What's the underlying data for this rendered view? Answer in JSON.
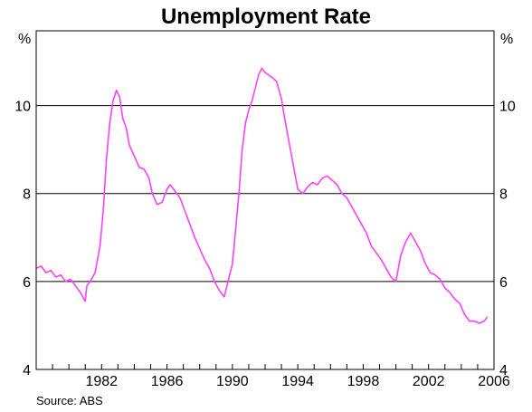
{
  "chart_data": {
    "type": "line",
    "title": "Unemployment Rate",
    "ylabel_left": "%",
    "ylabel_right": "%",
    "source": "Source: ABS",
    "xlim": [
      1978.0,
      2006.0
    ],
    "ylim": [
      4,
      11.7
    ],
    "x_ticks": [
      1982,
      1986,
      1990,
      1994,
      1998,
      2002,
      2006
    ],
    "y_ticks": [
      4,
      6,
      8,
      10
    ],
    "grid": "horizontal",
    "series_color": "#ff40ff",
    "series": [
      {
        "x": [
          1978.0,
          1978.3,
          1978.6,
          1978.9,
          1979.2,
          1979.5,
          1979.8,
          1980.1,
          1980.4,
          1980.7,
          1981.0,
          1981.1,
          1981.3,
          1981.6,
          1981.9,
          1982.1,
          1982.3,
          1982.5,
          1982.7,
          1982.9,
          1983.1,
          1983.3,
          1983.5,
          1983.7,
          1984.0,
          1984.3,
          1984.6,
          1984.9,
          1985.1,
          1985.4,
          1985.7,
          1986.0,
          1986.2,
          1986.5,
          1986.8,
          1987.1,
          1987.4,
          1987.7,
          1988.0,
          1988.3,
          1988.6,
          1988.9,
          1989.2,
          1989.5,
          1989.7,
          1990.0,
          1990.2,
          1990.4,
          1990.6,
          1990.8,
          1991.0,
          1991.2,
          1991.4,
          1991.6,
          1991.8,
          1992.0,
          1992.2,
          1992.4,
          1992.7,
          1993.0,
          1993.2,
          1993.4,
          1993.6,
          1993.8,
          1994.0,
          1994.3,
          1994.6,
          1994.9,
          1995.2,
          1995.5,
          1995.8,
          1996.1,
          1996.4,
          1996.7,
          1997.0,
          1997.3,
          1997.6,
          1997.9,
          1998.2,
          1998.5,
          1998.8,
          1999.1,
          1999.4,
          1999.7,
          2000.0,
          2000.3,
          2000.6,
          2000.9,
          2001.2,
          2001.5,
          2001.8,
          2002.1,
          2002.4,
          2002.7,
          2003.0,
          2003.3,
          2003.6,
          2003.9,
          2004.2,
          2004.5,
          2004.8,
          2005.1,
          2005.4,
          2005.6
        ],
        "values": [
          6.3,
          6.35,
          6.2,
          6.25,
          6.1,
          6.15,
          6.0,
          6.05,
          5.9,
          5.75,
          5.55,
          5.9,
          6.0,
          6.2,
          6.8,
          7.6,
          8.8,
          9.6,
          10.1,
          10.35,
          10.2,
          9.7,
          9.5,
          9.1,
          8.85,
          8.6,
          8.55,
          8.35,
          8.0,
          7.75,
          7.8,
          8.1,
          8.2,
          8.05,
          7.9,
          7.6,
          7.3,
          7.0,
          6.75,
          6.5,
          6.3,
          6.0,
          5.8,
          5.65,
          5.95,
          6.4,
          7.2,
          8.0,
          9.0,
          9.6,
          9.9,
          10.1,
          10.4,
          10.7,
          10.85,
          10.75,
          10.7,
          10.65,
          10.55,
          10.15,
          9.7,
          9.3,
          8.9,
          8.5,
          8.1,
          8.0,
          8.15,
          8.25,
          8.2,
          8.35,
          8.4,
          8.3,
          8.2,
          8.0,
          7.9,
          7.7,
          7.5,
          7.3,
          7.1,
          6.8,
          6.65,
          6.5,
          6.3,
          6.1,
          6.0,
          6.6,
          6.9,
          7.1,
          6.9,
          6.7,
          6.4,
          6.2,
          6.15,
          6.05,
          5.85,
          5.75,
          5.6,
          5.5,
          5.25,
          5.1,
          5.1,
          5.05,
          5.1,
          5.2
        ]
      }
    ]
  }
}
